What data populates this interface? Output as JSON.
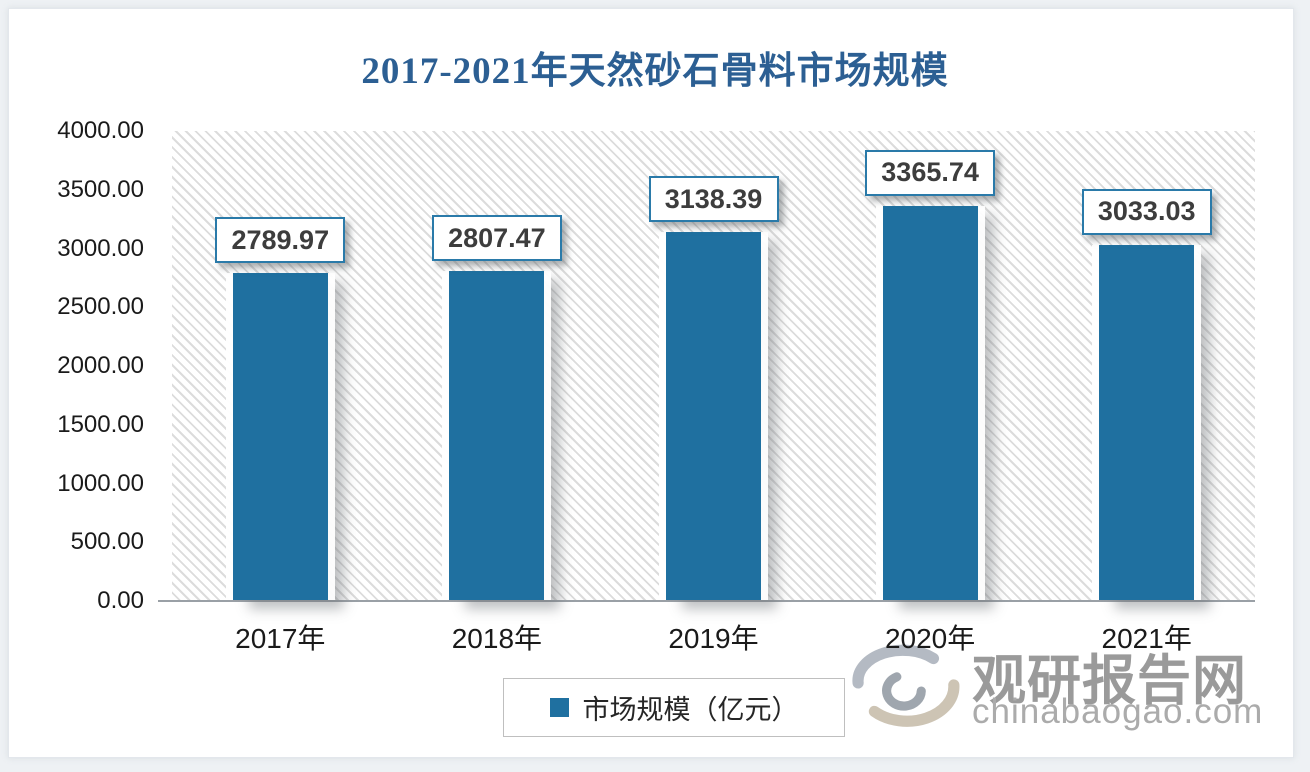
{
  "title": "2017-2021年天然砂石骨料市场规模",
  "colors": {
    "bar": "#1f70a0",
    "title": "#2c5f93",
    "box_border": "#2a7aa9",
    "axis": "#9aa0a6",
    "text": "#1a1a1a",
    "hatch": "#dcdcdc",
    "legend_border": "#bfbfbf",
    "watermark": "#9a9a9a",
    "watermark_light": "#ababab"
  },
  "chart_data": {
    "type": "bar",
    "title": "2017-2021年天然砂石骨料市场规模",
    "categories": [
      "2017年",
      "2018年",
      "2019年",
      "2020年",
      "2021年"
    ],
    "series": [
      {
        "name": "市场规模（亿元）",
        "values": [
          2789.97,
          2807.47,
          3138.39,
          3365.74,
          3033.03
        ]
      }
    ],
    "value_labels": [
      "2789.97",
      "2807.47",
      "3138.39",
      "3365.74",
      "3033.03"
    ],
    "xlabel": "",
    "ylabel": "",
    "ylim": [
      0,
      4000
    ],
    "yticks": [
      "4000.00",
      "3500.00",
      "3000.00",
      "2500.00",
      "2000.00",
      "1500.00",
      "1000.00",
      "500.00",
      "0.00"
    ],
    "grid": false,
    "plot_background": "diagonal-hatch",
    "legend_position": "bottom",
    "data_labels": true
  },
  "legend": {
    "label": "市场规模（亿元）"
  },
  "watermark": {
    "name": "观研报告网",
    "url": "chinabaogao.com"
  }
}
